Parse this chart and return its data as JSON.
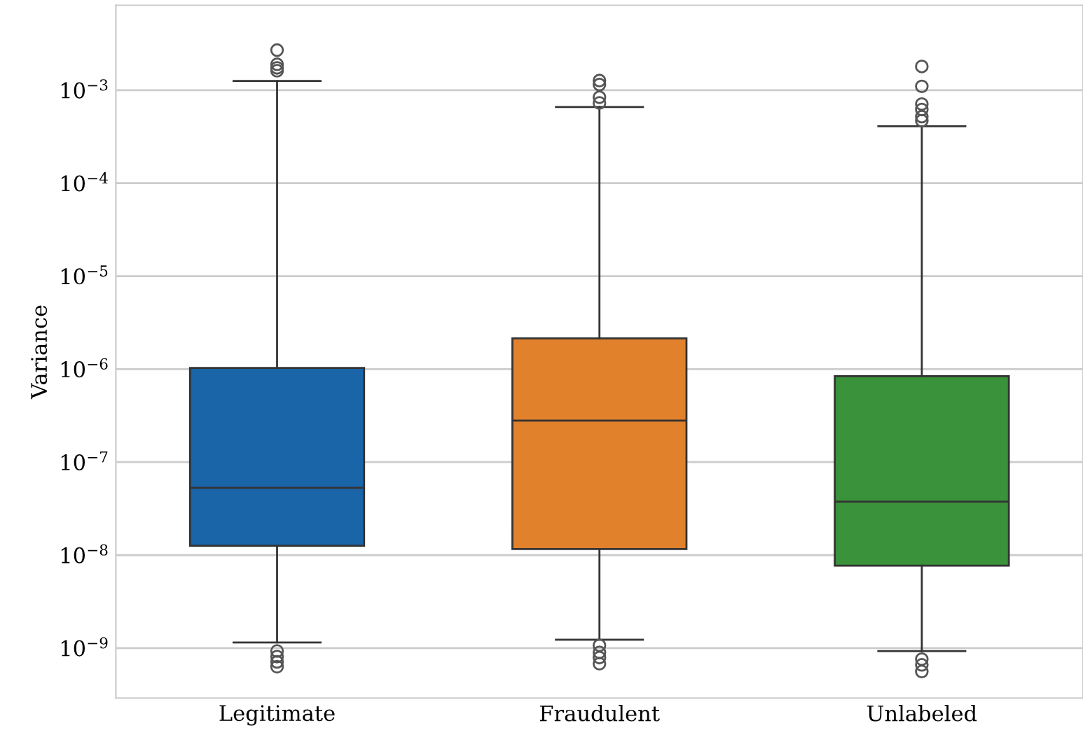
{
  "chart_data": {
    "type": "box",
    "ylabel": "Variance",
    "categories": [
      "Legitimate",
      "Fraudulent",
      "Unlabeled"
    ],
    "colors": [
      "#1a64a8",
      "#e1812c",
      "#3a923a"
    ],
    "boxes": [
      {
        "low": 1.15e-09,
        "q1": 1.26e-08,
        "median": 5.3e-08,
        "q3": 1.03e-06,
        "high": 0.00126,
        "outliers": [
          9.3e-10,
          8.1e-10,
          7.1e-10,
          6.3e-10,
          0.0027,
          0.0019,
          0.00174,
          0.00162
        ]
      },
      {
        "low": 1.23e-09,
        "q1": 1.16e-08,
        "median": 2.8e-07,
        "q3": 2.14e-06,
        "high": 0.00066,
        "outliers": [
          1.07e-09,
          9e-10,
          7.9e-10,
          6.8e-10,
          0.00127,
          0.00115,
          0.00084,
          0.00073
        ]
      },
      {
        "low": 9.3e-10,
        "q1": 7.7e-09,
        "median": 3.76e-08,
        "q3": 8.4e-07,
        "high": 0.00041,
        "outliers": [
          7.6e-10,
          6.6e-10,
          5.6e-10,
          0.0018,
          0.0011,
          0.00071,
          0.00062,
          0.00052,
          0.00047
        ]
      }
    ],
    "log": "y",
    "ylim": [
      2.9e-10,
      0.0082
    ],
    "yticks": [
      {
        "value": 1e-09,
        "label": "10$^{−9}$"
      },
      {
        "value": 1e-08,
        "label": "10$^{−8}$"
      },
      {
        "value": 1e-07,
        "label": "10$^{−7}$"
      },
      {
        "value": 1e-06,
        "label": "10$^{−6}$"
      },
      {
        "value": 1e-05,
        "label": "10$^{−5}$"
      },
      {
        "value": 0.0001,
        "label": "10$^{−4}$"
      },
      {
        "value": 0.001,
        "label": "10$^{−3}$"
      }
    ],
    "grid": "y"
  }
}
